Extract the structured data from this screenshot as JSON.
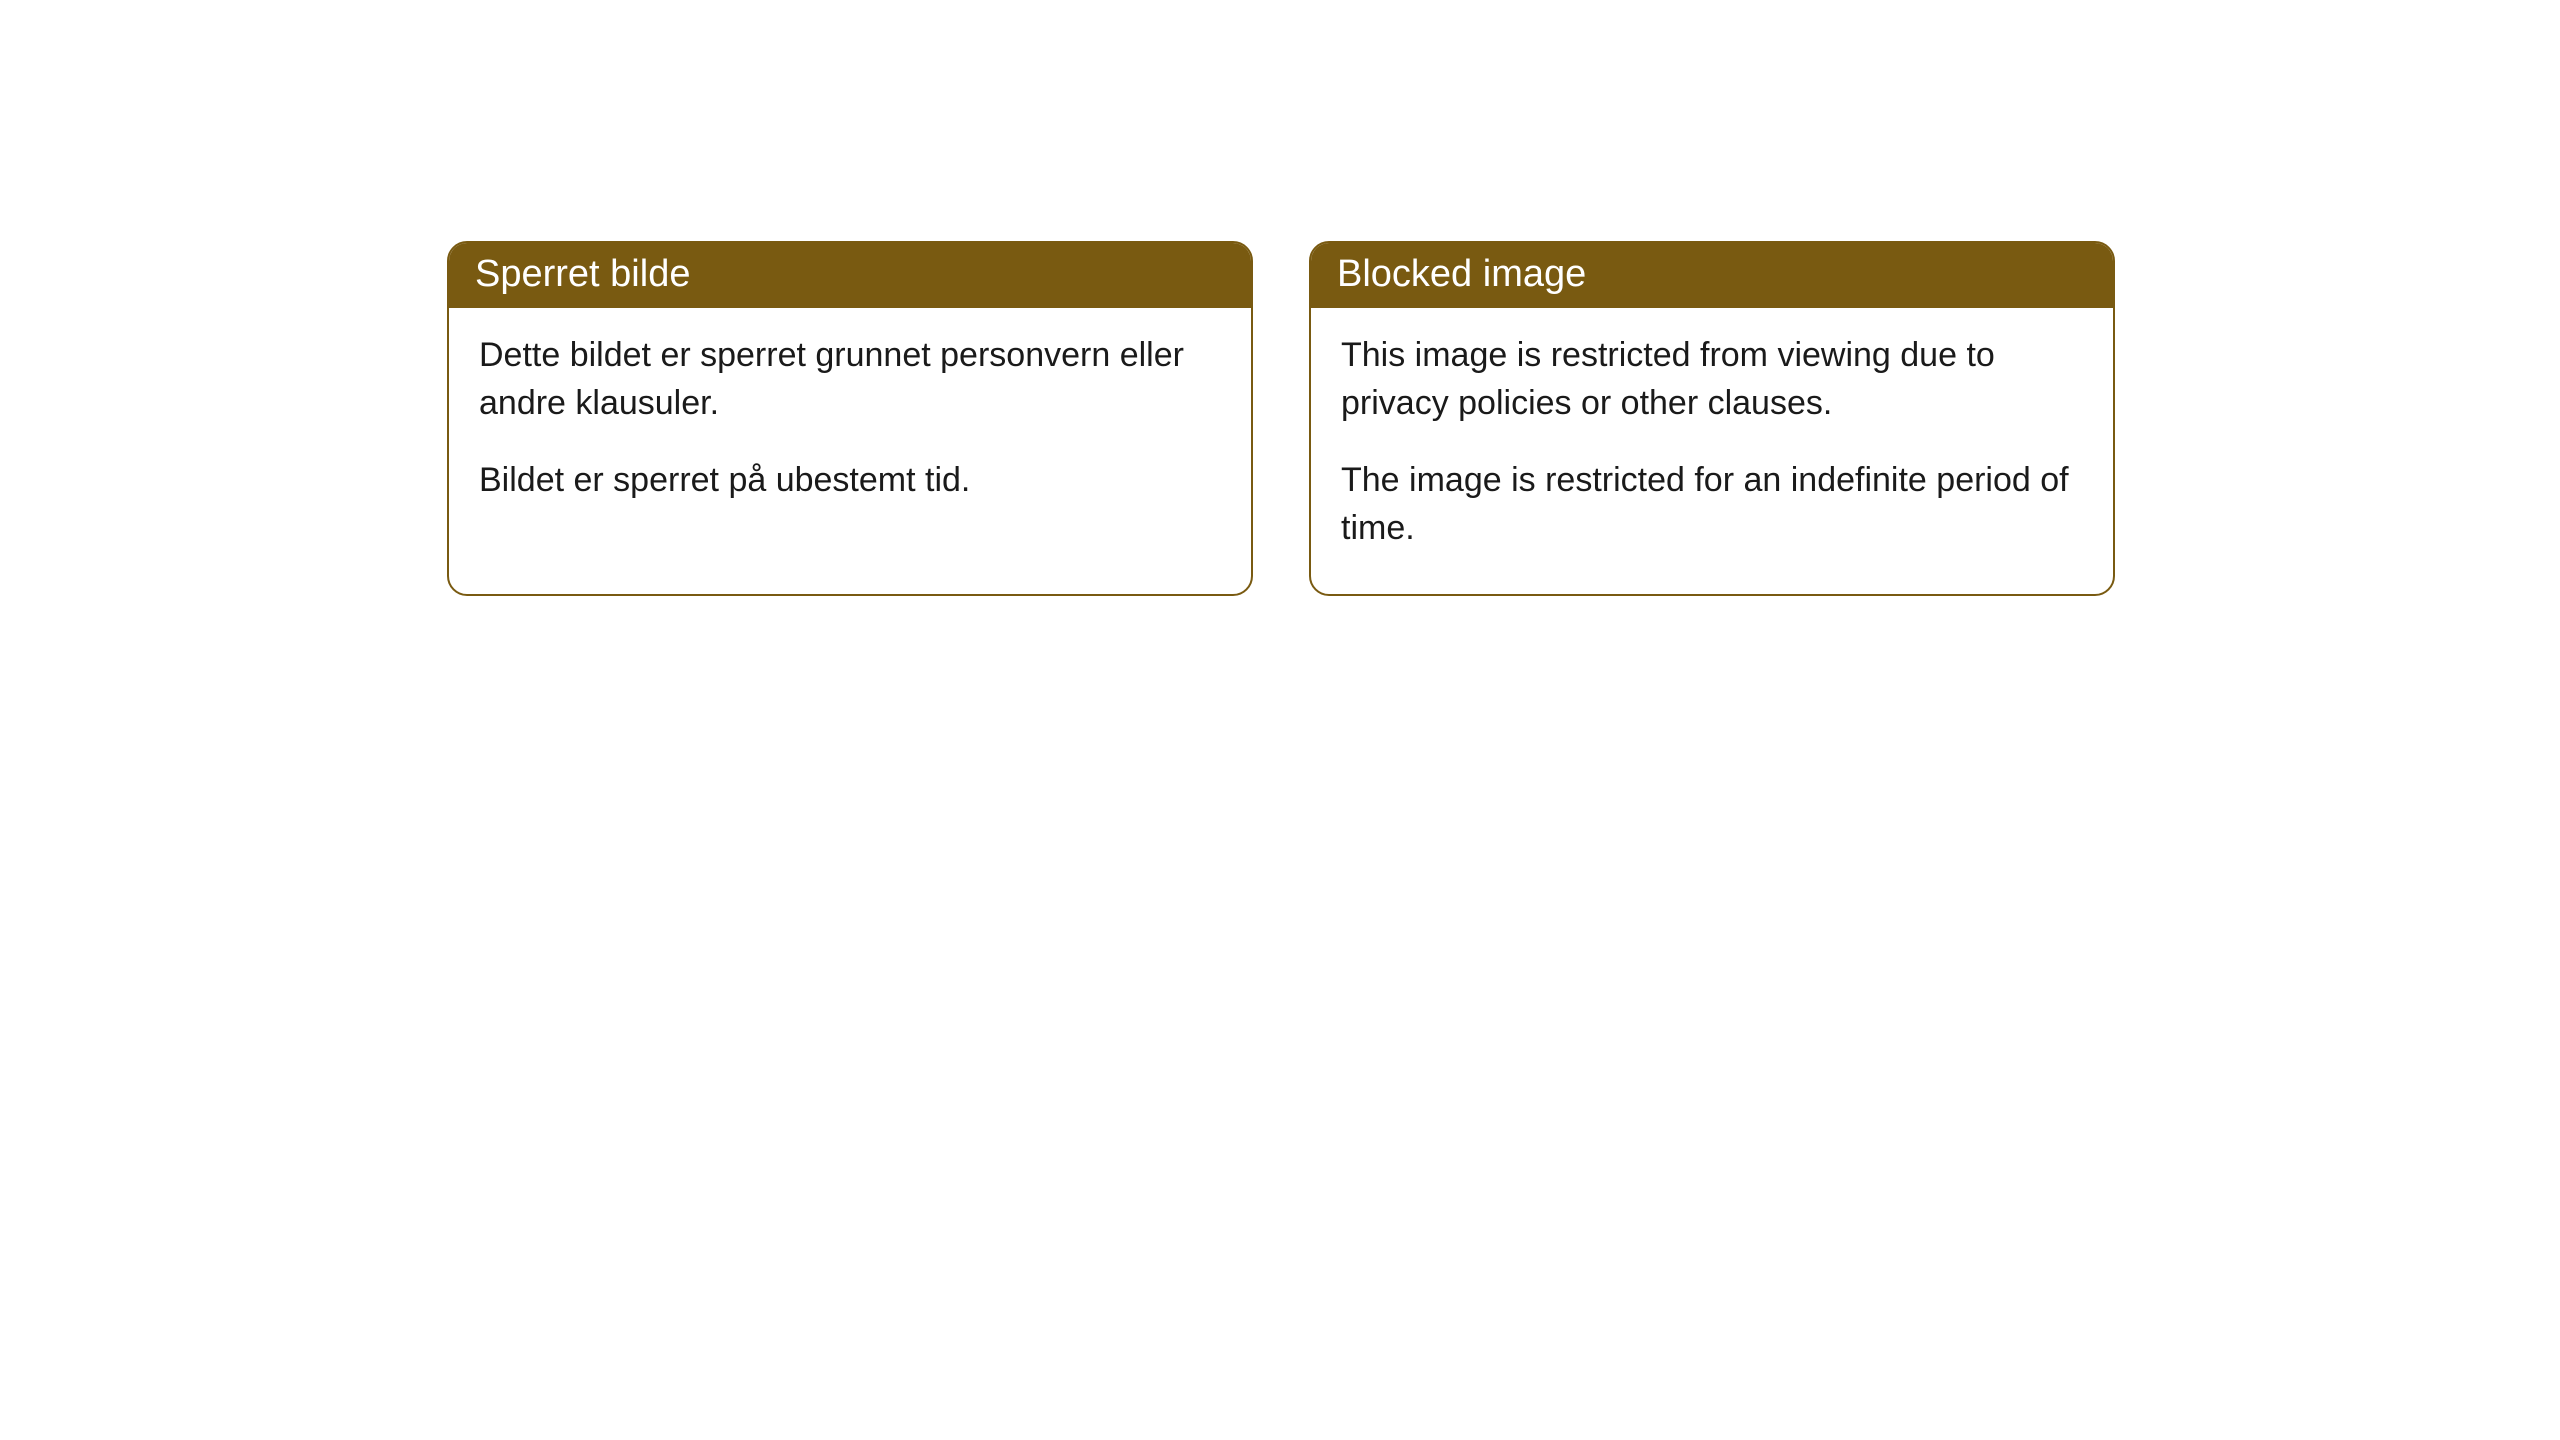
{
  "cards": [
    {
      "header": "Sperret bilde",
      "paragraph1": "Dette bildet er sperret grunnet personvern eller andre klausuler.",
      "paragraph2": "Bildet er sperret på ubestemt tid."
    },
    {
      "header": "Blocked image",
      "paragraph1": "This image is restricted from viewing due to privacy policies or other clauses.",
      "paragraph2": "The image is restricted for an indefinite period of time."
    }
  ],
  "styling": {
    "header_background": "#795a11",
    "header_text_color": "#ffffff",
    "border_color": "#795a11",
    "body_text_color": "#1a1a1a",
    "body_background": "#ffffff",
    "page_background": "#ffffff",
    "border_radius": 20,
    "header_fontsize": 38,
    "body_fontsize": 34
  }
}
